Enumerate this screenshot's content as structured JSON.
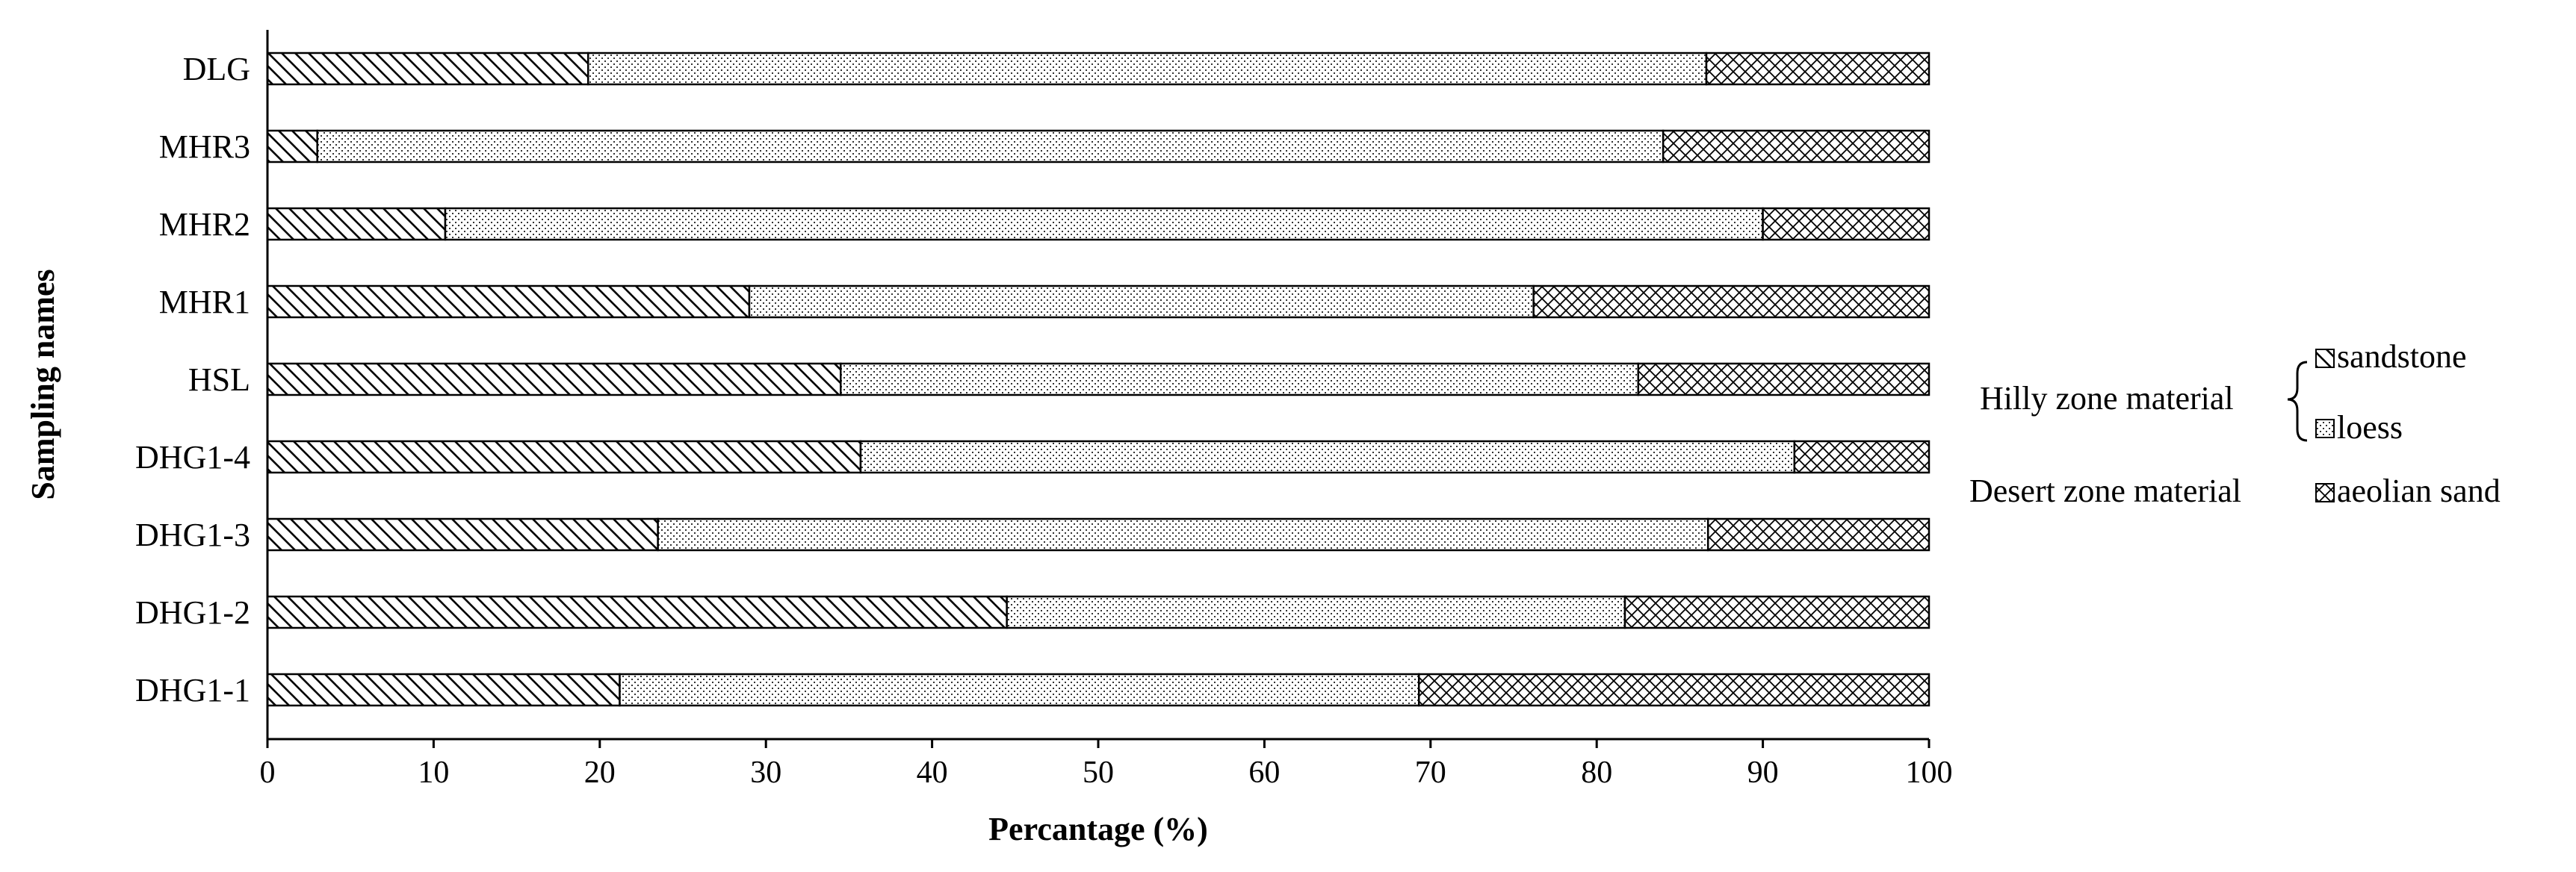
{
  "chart_data": {
    "type": "bar",
    "orientation": "horizontal",
    "stacked": true,
    "categories": [
      "DLG",
      "MHR3",
      "MHR2",
      "MHR1",
      "HSL",
      "DHG1-4",
      "DHG1-3",
      "DHG1-2",
      "DHG1-1"
    ],
    "series": [
      {
        "name": "sandstone",
        "pattern": "diagonal-hatch",
        "values": [
          19.3,
          3.0,
          10.7,
          29.0,
          34.5,
          35.7,
          23.5,
          44.5,
          21.2
        ]
      },
      {
        "name": "loess",
        "pattern": "dots",
        "values": [
          67.3,
          81.0,
          79.3,
          47.2,
          48.0,
          56.2,
          63.2,
          37.2,
          48.1
        ]
      },
      {
        "name": "aeolian sand",
        "pattern": "cross-hatch",
        "values": [
          13.4,
          16.0,
          10.0,
          23.8,
          17.5,
          8.1,
          13.3,
          18.3,
          30.7
        ]
      }
    ],
    "xlabel": "Percantage (%)",
    "ylabel": "Sampling names",
    "xlim": [
      0,
      100
    ],
    "xticks": [
      "0",
      "10",
      "20",
      "30",
      "40",
      "50",
      "60",
      "70",
      "80",
      "90",
      "100"
    ],
    "grid": false,
    "legend": {
      "placement": "right",
      "groups": [
        {
          "label": "Hilly zone material",
          "entries": [
            "sandstone",
            "loess"
          ]
        },
        {
          "label": "Desert zone material",
          "entries": [
            "aeolian sand"
          ]
        }
      ]
    }
  }
}
